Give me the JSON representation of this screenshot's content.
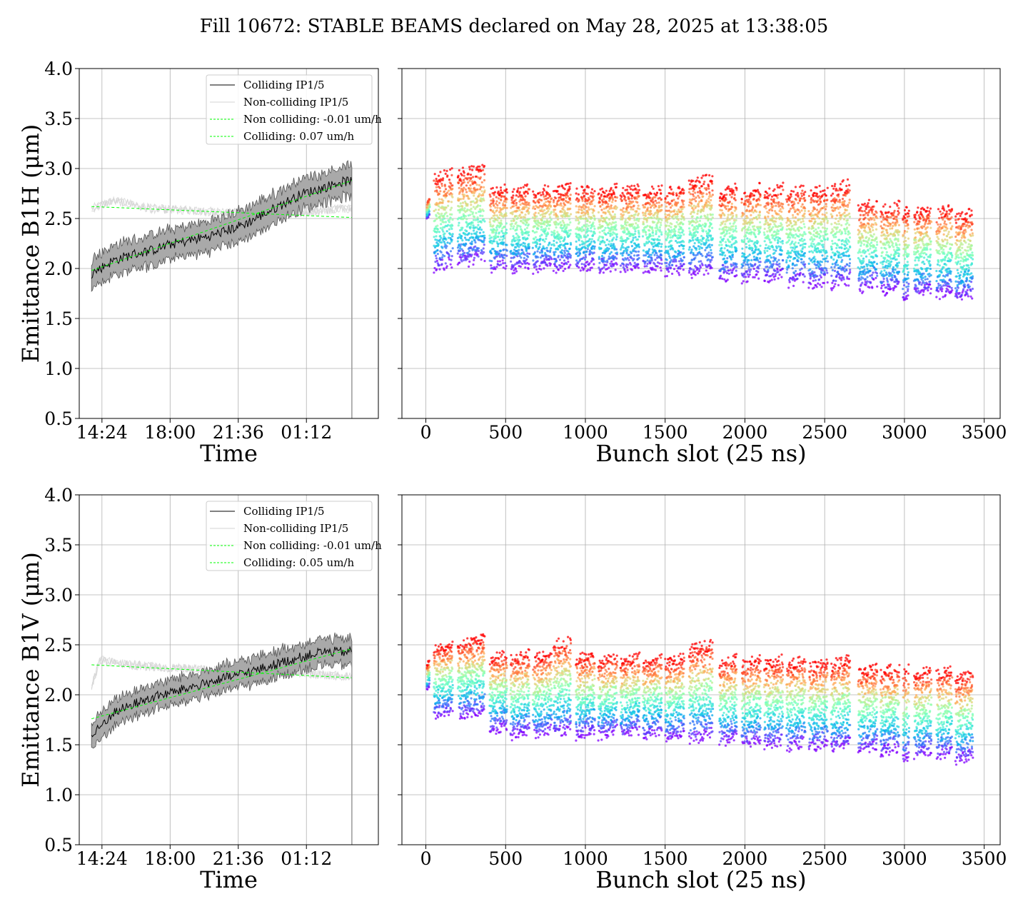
{
  "figure": {
    "title": "Fill 10672: STABLE BEAMS declared on May 28, 2025 at 13:38:05"
  },
  "chart_data": [
    {
      "id": "b1h-time",
      "type": "line",
      "xlabel": "Time",
      "ylabel": "Emittance B1H (μm)",
      "ylim": [
        0.5,
        4.0
      ],
      "x_ticks": [
        "14:24",
        "18:00",
        "21:36",
        "01:12"
      ],
      "x_tick_hours": [
        14.4,
        18.0,
        21.6,
        25.2
      ],
      "xlim_hours": [
        13.2,
        29.0
      ],
      "y_ticks": [
        "0.5",
        "1.0",
        "1.5",
        "2.0",
        "2.5",
        "3.0",
        "3.5",
        "4.0"
      ],
      "grid": true,
      "legend": {
        "placement": "top-right",
        "entries": [
          {
            "label": "Colliding IP1/5",
            "color": "#000000",
            "style": "solid"
          },
          {
            "label": "Non-colliding IP1/5",
            "color": "#d3d3d3",
            "style": "solid"
          },
          {
            "label": "Non colliding: -0.01 um/h",
            "color": "#00ff00",
            "style": "dashed"
          },
          {
            "label": "Colliding: 0.07 um/h",
            "color": "#00ff00",
            "style": "dashed"
          }
        ]
      },
      "series": [
        {
          "role": "colliding-mean",
          "x_hours": [
            13.85,
            15,
            16,
            17,
            18,
            19,
            20,
            21,
            22,
            23,
            24,
            25,
            26,
            26.9,
            27.6
          ],
          "values": [
            1.95,
            2.08,
            2.14,
            2.18,
            2.24,
            2.28,
            2.32,
            2.38,
            2.45,
            2.55,
            2.65,
            2.75,
            2.8,
            2.86,
            2.88
          ],
          "band_halfwidth": 0.15,
          "color": "#000000"
        },
        {
          "role": "noncolliding-mean",
          "x_hours": [
            13.85,
            15,
            16,
            17,
            18,
            19,
            20,
            21,
            22,
            23,
            24,
            25,
            26,
            27,
            27.6
          ],
          "values": [
            2.6,
            2.68,
            2.64,
            2.6,
            2.59,
            2.58,
            2.57,
            2.56,
            2.56,
            2.55,
            2.55,
            2.56,
            2.58,
            2.6,
            2.6
          ],
          "color": "#d3d3d3"
        },
        {
          "role": "noncolliding-fit",
          "x_hours": [
            13.85,
            27.6
          ],
          "values": [
            2.62,
            2.51
          ],
          "color": "#00ff00",
          "style": "dashed"
        },
        {
          "role": "colliding-fit",
          "x_hours": [
            13.85,
            27.6
          ],
          "values": [
            1.98,
            2.88
          ],
          "color": "#00ff00",
          "style": "dashed"
        }
      ]
    },
    {
      "id": "b1h-bunch",
      "type": "scatter",
      "xlabel": "Bunch slot (25 ns)",
      "ylabel": "",
      "xlim": [
        -150,
        3600
      ],
      "ylim": [
        0.5,
        4.0
      ],
      "x_ticks": [
        0,
        500,
        1000,
        1500,
        2000,
        2500,
        3000,
        3500
      ],
      "y_ticks_unlabeled": [
        0.5,
        1.0,
        1.5,
        2.0,
        2.5,
        3.0,
        3.5,
        4.0
      ],
      "grid": true,
      "colormap": "rainbow (violet at start of fill to red at end of fill)",
      "trains": [
        {
          "start": 5,
          "end": 25,
          "min": 2.5,
          "max": 2.7
        },
        {
          "start": 50,
          "end": 170,
          "min": 1.95,
          "max": 3.0
        },
        {
          "start": 200,
          "end": 370,
          "min": 2.0,
          "max": 3.05
        },
        {
          "start": 400,
          "end": 510,
          "min": 1.95,
          "max": 2.85
        },
        {
          "start": 530,
          "end": 650,
          "min": 1.95,
          "max": 2.85
        },
        {
          "start": 670,
          "end": 790,
          "min": 1.95,
          "max": 2.85
        },
        {
          "start": 800,
          "end": 910,
          "min": 1.95,
          "max": 2.85
        },
        {
          "start": 940,
          "end": 1060,
          "min": 1.95,
          "max": 2.85
        },
        {
          "start": 1080,
          "end": 1200,
          "min": 1.93,
          "max": 2.85
        },
        {
          "start": 1220,
          "end": 1340,
          "min": 1.93,
          "max": 2.85
        },
        {
          "start": 1360,
          "end": 1480,
          "min": 1.93,
          "max": 2.85
        },
        {
          "start": 1500,
          "end": 1620,
          "min": 1.9,
          "max": 2.85
        },
        {
          "start": 1650,
          "end": 1800,
          "min": 1.9,
          "max": 2.95
        },
        {
          "start": 1840,
          "end": 1950,
          "min": 1.85,
          "max": 2.85
        },
        {
          "start": 1980,
          "end": 2100,
          "min": 1.85,
          "max": 2.85
        },
        {
          "start": 2120,
          "end": 2240,
          "min": 1.85,
          "max": 2.85
        },
        {
          "start": 2260,
          "end": 2380,
          "min": 1.8,
          "max": 2.85
        },
        {
          "start": 2400,
          "end": 2520,
          "min": 1.78,
          "max": 2.85
        },
        {
          "start": 2540,
          "end": 2660,
          "min": 1.78,
          "max": 2.9
        },
        {
          "start": 2710,
          "end": 2830,
          "min": 1.75,
          "max": 2.7
        },
        {
          "start": 2850,
          "end": 2970,
          "min": 1.72,
          "max": 2.68
        },
        {
          "start": 2990,
          "end": 3030,
          "min": 1.65,
          "max": 2.65
        },
        {
          "start": 3060,
          "end": 3170,
          "min": 1.7,
          "max": 2.65
        },
        {
          "start": 3200,
          "end": 3300,
          "min": 1.68,
          "max": 2.65
        },
        {
          "start": 3320,
          "end": 3430,
          "min": 1.65,
          "max": 2.6
        }
      ]
    },
    {
      "id": "b1v-time",
      "type": "line",
      "xlabel": "Time",
      "ylabel": "Emittance B1V (μm)",
      "ylim": [
        0.5,
        4.0
      ],
      "x_ticks": [
        "14:24",
        "18:00",
        "21:36",
        "01:12"
      ],
      "x_tick_hours": [
        14.4,
        18.0,
        21.6,
        25.2
      ],
      "xlim_hours": [
        13.2,
        29.0
      ],
      "y_ticks": [
        "0.5",
        "1.0",
        "1.5",
        "2.0",
        "2.5",
        "3.0",
        "3.5",
        "4.0"
      ],
      "grid": true,
      "legend": {
        "placement": "top-right",
        "entries": [
          {
            "label": "Colliding IP1/5",
            "color": "#000000",
            "style": "solid"
          },
          {
            "label": "Non-colliding IP1/5",
            "color": "#d3d3d3",
            "style": "solid"
          },
          {
            "label": "Non colliding: -0.01 um/h",
            "color": "#00ff00",
            "style": "dashed"
          },
          {
            "label": "Colliding: 0.05 um/h",
            "color": "#00ff00",
            "style": "dashed"
          }
        ]
      },
      "series": [
        {
          "role": "colliding-mean",
          "x_hours": [
            13.85,
            14.5,
            15,
            16,
            17,
            18,
            19,
            20,
            21,
            22,
            23,
            24,
            25,
            26,
            27.6
          ],
          "values": [
            1.58,
            1.72,
            1.82,
            1.9,
            1.97,
            2.02,
            2.07,
            2.12,
            2.17,
            2.22,
            2.27,
            2.33,
            2.38,
            2.43,
            2.43
          ],
          "band_halfwidth": 0.13,
          "color": "#000000"
        },
        {
          "role": "noncolliding-mean",
          "x_hours": [
            13.85,
            14.3,
            15,
            16,
            17,
            18,
            19,
            20,
            21,
            22,
            23,
            24,
            25,
            26,
            27.6
          ],
          "values": [
            2.08,
            2.35,
            2.32,
            2.3,
            2.28,
            2.27,
            2.26,
            2.25,
            2.25,
            2.24,
            2.23,
            2.23,
            2.22,
            2.2,
            2.18
          ],
          "color": "#d3d3d3"
        },
        {
          "role": "noncolliding-fit",
          "x_hours": [
            13.85,
            27.6
          ],
          "values": [
            2.3,
            2.17
          ],
          "color": "#00ff00",
          "style": "dashed"
        },
        {
          "role": "colliding-fit",
          "x_hours": [
            13.85,
            27.6
          ],
          "values": [
            1.76,
            2.46
          ],
          "color": "#00ff00",
          "style": "dashed"
        }
      ]
    },
    {
      "id": "b1v-bunch",
      "type": "scatter",
      "xlabel": "Bunch slot (25 ns)",
      "ylabel": "",
      "xlim": [
        -150,
        3600
      ],
      "ylim": [
        0.5,
        4.0
      ],
      "x_ticks": [
        0,
        500,
        1000,
        1500,
        2000,
        2500,
        3000,
        3500
      ],
      "y_ticks_unlabeled": [
        0.5,
        1.0,
        1.5,
        2.0,
        2.5,
        3.0,
        3.5,
        4.0
      ],
      "grid": true,
      "colormap": "rainbow (violet at start of fill to red at end of fill)",
      "trains": [
        {
          "start": 5,
          "end": 25,
          "min": 2.05,
          "max": 2.35
        },
        {
          "start": 50,
          "end": 170,
          "min": 1.75,
          "max": 2.55
        },
        {
          "start": 200,
          "end": 370,
          "min": 1.75,
          "max": 2.6
        },
        {
          "start": 400,
          "end": 510,
          "min": 1.6,
          "max": 2.45
        },
        {
          "start": 530,
          "end": 650,
          "min": 1.55,
          "max": 2.45
        },
        {
          "start": 670,
          "end": 790,
          "min": 1.55,
          "max": 2.45
        },
        {
          "start": 800,
          "end": 910,
          "min": 1.55,
          "max": 2.6
        },
        {
          "start": 940,
          "end": 1060,
          "min": 1.55,
          "max": 2.45
        },
        {
          "start": 1080,
          "end": 1200,
          "min": 1.55,
          "max": 2.42
        },
        {
          "start": 1220,
          "end": 1340,
          "min": 1.55,
          "max": 2.42
        },
        {
          "start": 1360,
          "end": 1480,
          "min": 1.55,
          "max": 2.42
        },
        {
          "start": 1500,
          "end": 1620,
          "min": 1.52,
          "max": 2.42
        },
        {
          "start": 1650,
          "end": 1800,
          "min": 1.5,
          "max": 2.55
        },
        {
          "start": 1840,
          "end": 1950,
          "min": 1.48,
          "max": 2.4
        },
        {
          "start": 1980,
          "end": 2100,
          "min": 1.45,
          "max": 2.4
        },
        {
          "start": 2120,
          "end": 2240,
          "min": 1.45,
          "max": 2.4
        },
        {
          "start": 2260,
          "end": 2380,
          "min": 1.43,
          "max": 2.4
        },
        {
          "start": 2400,
          "end": 2520,
          "min": 1.42,
          "max": 2.38
        },
        {
          "start": 2540,
          "end": 2660,
          "min": 1.42,
          "max": 2.4
        },
        {
          "start": 2710,
          "end": 2830,
          "min": 1.4,
          "max": 2.32
        },
        {
          "start": 2850,
          "end": 2970,
          "min": 1.38,
          "max": 2.32
        },
        {
          "start": 2990,
          "end": 3030,
          "min": 1.3,
          "max": 2.3
        },
        {
          "start": 3060,
          "end": 3170,
          "min": 1.35,
          "max": 2.3
        },
        {
          "start": 3200,
          "end": 3300,
          "min": 1.33,
          "max": 2.3
        },
        {
          "start": 3320,
          "end": 3430,
          "min": 1.3,
          "max": 2.25
        }
      ]
    }
  ]
}
